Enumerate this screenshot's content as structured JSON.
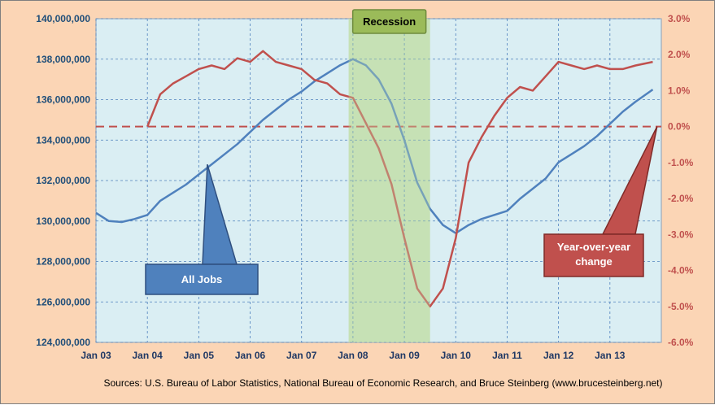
{
  "chart_data": {
    "type": "line",
    "title": "",
    "source": "Sources: U.S. Bureau of Labor Statistics, National Bureau of Economic Research, and Bruce Steinberg (www.brucesteinberg.net)",
    "x_ticks": [
      "Jan 03",
      "Jan 04",
      "Jan 05",
      "Jan 06",
      "Jan 07",
      "Jan 08",
      "Jan 09",
      "Jan 10",
      "Jan 11",
      "Jan 12",
      "Jan 13"
    ],
    "x_range": [
      "2003-01",
      "2013-12"
    ],
    "y_left": {
      "range": [
        124000000,
        140000000
      ],
      "ticks": [
        "124,000,000",
        "126,000,000",
        "128,000,000",
        "130,000,000",
        "132,000,000",
        "134,000,000",
        "136,000,000",
        "138,000,000",
        "140,000,000"
      ]
    },
    "y_right": {
      "range": [
        -6.0,
        3.0
      ],
      "ticks": [
        "-6.0%",
        "-5.0%",
        "-4.0%",
        "-3.0%",
        "-2.0%",
        "-1.0%",
        "0.0%",
        "1.0%",
        "2.0%",
        "3.0%"
      ]
    },
    "grid": true,
    "recession": {
      "label": "Recession",
      "start": "2007-12",
      "end": "2009-06"
    },
    "series": [
      {
        "name": "All Jobs",
        "axis": "left",
        "color": "#4f81bd",
        "points": [
          [
            "2003-01",
            130400000
          ],
          [
            "2003-04",
            130000000
          ],
          [
            "2003-07",
            129950000
          ],
          [
            "2003-10",
            130100000
          ],
          [
            "2004-01",
            130300000
          ],
          [
            "2004-04",
            131000000
          ],
          [
            "2004-07",
            131400000
          ],
          [
            "2004-10",
            131800000
          ],
          [
            "2005-01",
            132300000
          ],
          [
            "2005-04",
            132800000
          ],
          [
            "2005-07",
            133300000
          ],
          [
            "2005-10",
            133800000
          ],
          [
            "2006-01",
            134400000
          ],
          [
            "2006-04",
            135000000
          ],
          [
            "2006-07",
            135500000
          ],
          [
            "2006-10",
            136000000
          ],
          [
            "2007-01",
            136400000
          ],
          [
            "2007-04",
            136900000
          ],
          [
            "2007-07",
            137300000
          ],
          [
            "2007-10",
            137700000
          ],
          [
            "2008-01",
            138000000
          ],
          [
            "2008-04",
            137700000
          ],
          [
            "2008-07",
            137000000
          ],
          [
            "2008-10",
            135800000
          ],
          [
            "2009-01",
            134000000
          ],
          [
            "2009-04",
            131900000
          ],
          [
            "2009-07",
            130600000
          ],
          [
            "2009-10",
            129800000
          ],
          [
            "2010-01",
            129400000
          ],
          [
            "2010-04",
            129800000
          ],
          [
            "2010-07",
            130100000
          ],
          [
            "2010-10",
            130300000
          ],
          [
            "2011-01",
            130500000
          ],
          [
            "2011-04",
            131100000
          ],
          [
            "2011-07",
            131600000
          ],
          [
            "2011-10",
            132100000
          ],
          [
            "2012-01",
            132900000
          ],
          [
            "2012-04",
            133300000
          ],
          [
            "2012-07",
            133700000
          ],
          [
            "2012-10",
            134200000
          ],
          [
            "2013-01",
            134800000
          ],
          [
            "2013-04",
            135400000
          ],
          [
            "2013-07",
            135900000
          ],
          [
            "2013-11",
            136500000
          ]
        ]
      },
      {
        "name": "Year-over-year change",
        "axis": "right",
        "color": "#c0504d",
        "points": [
          [
            "2004-01",
            0.0
          ],
          [
            "2004-04",
            0.9
          ],
          [
            "2004-07",
            1.2
          ],
          [
            "2004-10",
            1.4
          ],
          [
            "2005-01",
            1.6
          ],
          [
            "2005-04",
            1.7
          ],
          [
            "2005-07",
            1.6
          ],
          [
            "2005-10",
            1.9
          ],
          [
            "2006-01",
            1.8
          ],
          [
            "2006-04",
            2.1
          ],
          [
            "2006-07",
            1.8
          ],
          [
            "2006-10",
            1.7
          ],
          [
            "2007-01",
            1.6
          ],
          [
            "2007-04",
            1.3
          ],
          [
            "2007-07",
            1.2
          ],
          [
            "2007-10",
            0.9
          ],
          [
            "2008-01",
            0.8
          ],
          [
            "2008-04",
            0.1
          ],
          [
            "2008-07",
            -0.6
          ],
          [
            "2008-10",
            -1.6
          ],
          [
            "2009-01",
            -3.1
          ],
          [
            "2009-04",
            -4.5
          ],
          [
            "2009-07",
            -5.0
          ],
          [
            "2009-10",
            -4.5
          ],
          [
            "2010-01",
            -3.1
          ],
          [
            "2010-04",
            -1.0
          ],
          [
            "2010-07",
            -0.3
          ],
          [
            "2010-10",
            0.3
          ],
          [
            "2011-01",
            0.8
          ],
          [
            "2011-04",
            1.1
          ],
          [
            "2011-07",
            1.0
          ],
          [
            "2011-10",
            1.4
          ],
          [
            "2012-01",
            1.8
          ],
          [
            "2012-04",
            1.7
          ],
          [
            "2012-07",
            1.6
          ],
          [
            "2012-10",
            1.7
          ],
          [
            "2013-01",
            1.6
          ],
          [
            "2013-04",
            1.6
          ],
          [
            "2013-07",
            1.7
          ],
          [
            "2013-11",
            1.8
          ]
        ]
      }
    ],
    "reference_line": {
      "axis": "right",
      "value": 0.0,
      "color": "#c0504d"
    },
    "callouts": [
      {
        "text": "All Jobs",
        "color": "#4f81bd",
        "points_to": [
          "2005-03",
          132800000
        ]
      },
      {
        "lines": [
          "Year-over-year",
          "change"
        ],
        "color": "#c0504d",
        "points_to": [
          "2013-12",
          0.0
        ]
      }
    ]
  }
}
